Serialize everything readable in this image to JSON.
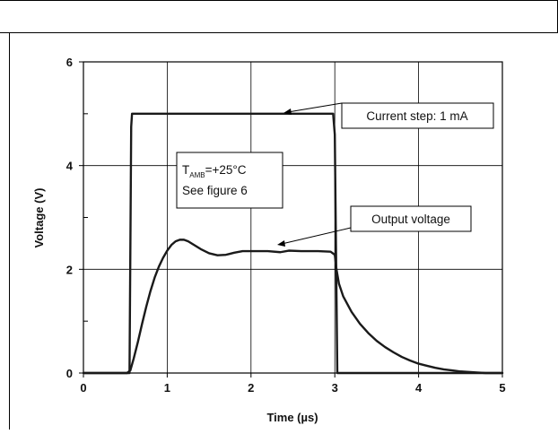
{
  "chart_data": {
    "type": "line",
    "xlabel": "Time (µs)",
    "ylabel": "Voltage (V)",
    "xlim": [
      0,
      5
    ],
    "ylim": [
      0,
      6
    ],
    "x_ticks": [
      0,
      1,
      2,
      3,
      4,
      5
    ],
    "y_ticks": [
      0,
      2,
      4,
      6
    ],
    "grid": true,
    "series": [
      {
        "values": [
          [
            0,
            0
          ],
          [
            0.55,
            0
          ],
          [
            0.57,
            4.75
          ],
          [
            0.58,
            5.0
          ],
          [
            2.98,
            5.0
          ],
          [
            3.0,
            4.6
          ],
          [
            3.03,
            0
          ],
          [
            5,
            0
          ]
        ]
      },
      {
        "values": [
          [
            0,
            0
          ],
          [
            0.52,
            0
          ],
          [
            0.56,
            0.05
          ],
          [
            0.6,
            0.28
          ],
          [
            0.65,
            0.6
          ],
          [
            0.7,
            0.95
          ],
          [
            0.75,
            1.28
          ],
          [
            0.8,
            1.58
          ],
          [
            0.85,
            1.84
          ],
          [
            0.9,
            2.05
          ],
          [
            0.95,
            2.22
          ],
          [
            1.0,
            2.36
          ],
          [
            1.05,
            2.47
          ],
          [
            1.1,
            2.54
          ],
          [
            1.15,
            2.57
          ],
          [
            1.2,
            2.57
          ],
          [
            1.25,
            2.54
          ],
          [
            1.3,
            2.49
          ],
          [
            1.4,
            2.39
          ],
          [
            1.5,
            2.31
          ],
          [
            1.6,
            2.27
          ],
          [
            1.7,
            2.28
          ],
          [
            1.8,
            2.32
          ],
          [
            1.9,
            2.35
          ],
          [
            2.0,
            2.35
          ],
          [
            2.2,
            2.35
          ],
          [
            2.35,
            2.33
          ],
          [
            2.45,
            2.36
          ],
          [
            2.6,
            2.35
          ],
          [
            2.8,
            2.35
          ],
          [
            2.95,
            2.34
          ],
          [
            3.0,
            2.28
          ],
          [
            3.02,
            2.0
          ],
          [
            3.05,
            1.72
          ],
          [
            3.1,
            1.48
          ],
          [
            3.2,
            1.18
          ],
          [
            3.3,
            0.95
          ],
          [
            3.4,
            0.77
          ],
          [
            3.5,
            0.62
          ],
          [
            3.6,
            0.5
          ],
          [
            3.7,
            0.4
          ],
          [
            3.8,
            0.31
          ],
          [
            3.9,
            0.24
          ],
          [
            4.0,
            0.18
          ],
          [
            4.1,
            0.14
          ],
          [
            4.2,
            0.1
          ],
          [
            4.3,
            0.07
          ],
          [
            4.4,
            0.05
          ],
          [
            4.5,
            0.03
          ],
          [
            4.6,
            0.02
          ],
          [
            4.7,
            0.01
          ],
          [
            4.8,
            0
          ],
          [
            5,
            0
          ]
        ]
      }
    ],
    "annotations": {
      "current_step": "Current step: 1 mA",
      "output_voltage": "Output voltage",
      "tamb_main": "T",
      "tamb_sub": "AMB",
      "tamb_value": "=+25°C",
      "see_figure": "See figure 6"
    }
  }
}
